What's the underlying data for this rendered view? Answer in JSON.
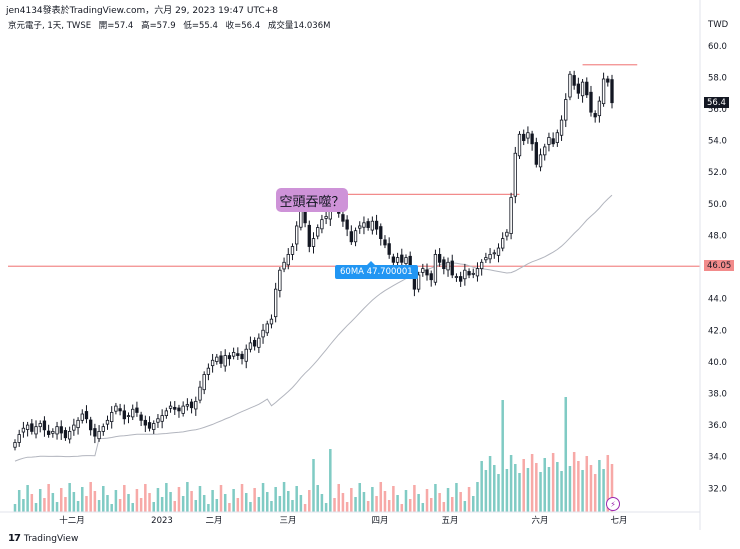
{
  "header": {
    "text": "jen4134發表於TradingView.com，六月 29, 2023 19:47 UTC+8"
  },
  "legend": {
    "symbol": "京元電子, 1天, TWSE",
    "open": "開=57.4",
    "high": "高=57.9",
    "low": "低=55.4",
    "close": "收=56.4",
    "volume": "成交量14.036M"
  },
  "annotations": {
    "callout": "空頭吞噬？",
    "ma_label": "60MA 47.700001"
  },
  "price_tags": {
    "last": "56.4",
    "line": "46.05"
  },
  "footer": {
    "brand": "TradingView",
    "logo": "17"
  },
  "colors": {
    "up": "#26a69a",
    "down": "#ef5350",
    "candle_up_fill": "#ffffff",
    "candle_down_fill": "#131722",
    "line_red": "#f28b8b",
    "ma": "#b2b5be",
    "callout_bg": "#ce93d8",
    "ma_tag_bg": "#2196f3"
  },
  "chart_data": {
    "type": "candlestick",
    "currency": "TWD",
    "ylim": [
      30.5,
      61
    ],
    "y_ticks": [
      32.0,
      34.0,
      36.0,
      38.0,
      40.0,
      42.0,
      44.0,
      46.0,
      48.0,
      50.0,
      52.0,
      54.0,
      56.0,
      58.0,
      60.0
    ],
    "x_ticks": [
      "十二月",
      "2023",
      "二月",
      "三月",
      "四月",
      "五月",
      "六月",
      "七月"
    ],
    "close_series": [
      34.9,
      35.4,
      35.8,
      36.0,
      35.6,
      35.9,
      36.1,
      35.7,
      35.4,
      35.6,
      35.9,
      35.5,
      35.2,
      35.6,
      36.0,
      36.3,
      36.7,
      36.4,
      35.7,
      35.3,
      35.6,
      35.9,
      36.3,
      36.8,
      37.2,
      36.9,
      36.4,
      36.6,
      37.0,
      36.8,
      36.3,
      36.0,
      35.8,
      36.1,
      36.4,
      36.6,
      36.9,
      37.2,
      37.0,
      36.9,
      37.2,
      37.3,
      37.1,
      37.5,
      38.4,
      39.2,
      39.6,
      40.1,
      40.3,
      39.9,
      40.4,
      40.2,
      40.6,
      40.4,
      40.2,
      40.8,
      41.2,
      41.0,
      41.5,
      42.0,
      42.4,
      42.7,
      44.6,
      45.8,
      46.3,
      46.8,
      47.3,
      48.6,
      49.6,
      48.8,
      47.3,
      47.8,
      48.5,
      49.0,
      49.2,
      50.0,
      49.9,
      49.4,
      48.9,
      48.4,
      47.6,
      48.3,
      48.6,
      48.8,
      48.5,
      48.9,
      48.4,
      47.8,
      47.4,
      46.8,
      46.3,
      46.6,
      46.3,
      46.6,
      45.6,
      44.6,
      45.5,
      45.9,
      45.5,
      45.2,
      46.8,
      46.3,
      45.9,
      46.3,
      45.5,
      45.4,
      45.1,
      45.8,
      45.5,
      45.6,
      45.9,
      46.3,
      46.6,
      46.8,
      46.9,
      47.2,
      47.8,
      48.2,
      50.4,
      53.2,
      54.4,
      54.0,
      54.5,
      53.8,
      52.5,
      53.1,
      53.6,
      54.2,
      53.8,
      54.5,
      55.3,
      56.6,
      58.2,
      57.5,
      57.0,
      57.7,
      56.9,
      55.8,
      55.5,
      56.5,
      57.9,
      57.7,
      56.4
    ],
    "ma60_label": "60MA 47.700001",
    "horizontal_lines": [
      46.05,
      50.6,
      58.8
    ],
    "volume_note": "成交量 bars shown at bottom, colored by up/down"
  }
}
